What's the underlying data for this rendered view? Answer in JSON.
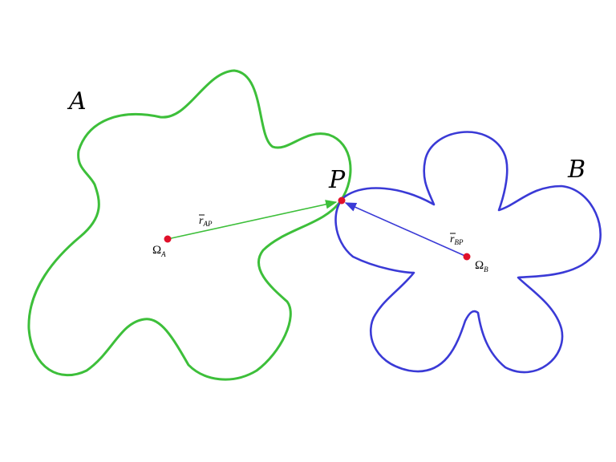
{
  "diagram": {
    "body_a": {
      "label": "A",
      "color": "#3dbf3a",
      "center_label": "Ω",
      "center_subscript": "A"
    },
    "body_b": {
      "label": "B",
      "color": "#3a3ad6",
      "center_label": "Ω",
      "center_subscript": "B"
    },
    "contact_point": {
      "label": "P",
      "color": "#e0102a"
    },
    "vector_ap": {
      "symbol": "r",
      "subscript": "AP",
      "color": "#3dbf3a"
    },
    "vector_bp": {
      "symbol": "r",
      "subscript": "BP",
      "color": "#3a3ad6"
    }
  }
}
